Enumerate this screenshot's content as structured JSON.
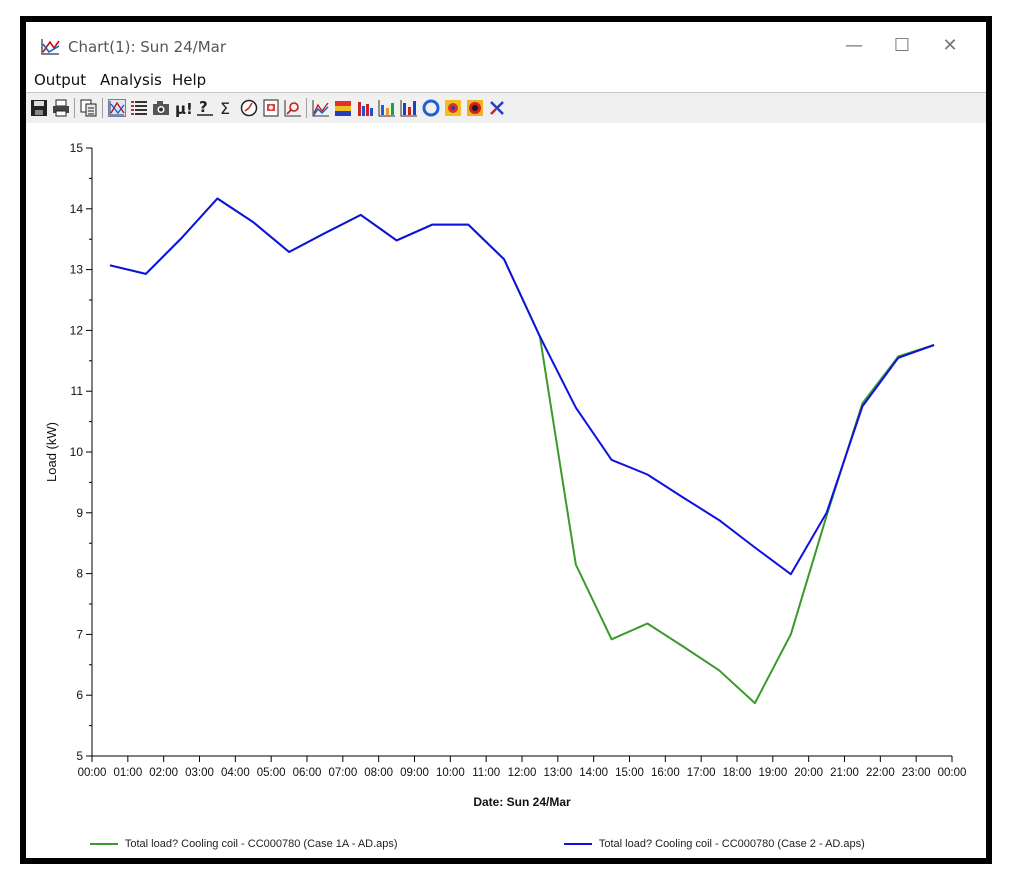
{
  "window": {
    "title": "Chart(1): Sun 24/Mar",
    "minimize_glyph": "—",
    "maximize_glyph": "☐",
    "close_glyph": "✕"
  },
  "menu": {
    "items": [
      "Output",
      "Analysis",
      "Help"
    ]
  },
  "toolbar": {
    "icons": [
      "save-icon",
      "print-icon",
      "copy-icon",
      "line-chart-icon",
      "list-icon",
      "camera-icon",
      "mu-icon",
      "question-icon",
      "sigma-icon",
      "clock-icon",
      "report-icon",
      "zoom-chart-icon",
      "area-chart-icon",
      "band-chart-icon",
      "bar-chart-icon",
      "stacked-bar-icon",
      "column-chart-icon",
      "ring-icon",
      "heatmap-icon",
      "contour-icon",
      "settings-icon"
    ]
  },
  "chart_data": {
    "type": "line",
    "title": "",
    "xlabel": "Date: Sun 24/Mar",
    "ylabel": "Load (kW)",
    "ylim": [
      5,
      15
    ],
    "yticks": [
      "5",
      "6",
      "7",
      "8",
      "9",
      "10",
      "11",
      "12",
      "13",
      "14",
      "15"
    ],
    "xticks": [
      "00:00",
      "01:00",
      "02:00",
      "03:00",
      "04:00",
      "05:00",
      "06:00",
      "07:00",
      "08:00",
      "09:00",
      "10:00",
      "11:00",
      "12:00",
      "13:00",
      "14:00",
      "15:00",
      "16:00",
      "17:00",
      "18:00",
      "19:00",
      "20:00",
      "21:00",
      "22:00",
      "23:00",
      "00:00"
    ],
    "x": [
      0.5,
      1.5,
      2.5,
      3.5,
      4.5,
      5.5,
      6.5,
      7.5,
      8.5,
      9.5,
      10.5,
      11.5,
      12.5,
      13.5,
      14.5,
      15.5,
      16.5,
      17.5,
      18.5,
      19.5,
      20.5,
      21.5,
      22.5,
      23.5
    ],
    "series": [
      {
        "name": "Total load? Cooling coil - CC000780 (Case 1A - AD.aps)",
        "color": "#3a9a2a",
        "values": [
          13.07,
          12.93,
          13.52,
          14.17,
          13.78,
          13.29,
          13.6,
          13.9,
          13.48,
          13.74,
          13.74,
          13.17,
          11.9,
          8.15,
          6.92,
          7.18,
          6.8,
          6.41,
          5.87,
          7.0,
          8.95,
          10.8,
          11.57,
          11.76
        ]
      },
      {
        "name": "Total load? Cooling coil - CC000780 (Case 2 - AD.aps)",
        "color": "#1010e0",
        "values": [
          13.07,
          12.93,
          13.52,
          14.17,
          13.78,
          13.29,
          13.6,
          13.9,
          13.48,
          13.74,
          13.74,
          13.17,
          11.9,
          10.73,
          9.87,
          9.63,
          9.25,
          8.88,
          8.43,
          7.99,
          9.0,
          10.75,
          11.55,
          11.76
        ]
      }
    ]
  }
}
